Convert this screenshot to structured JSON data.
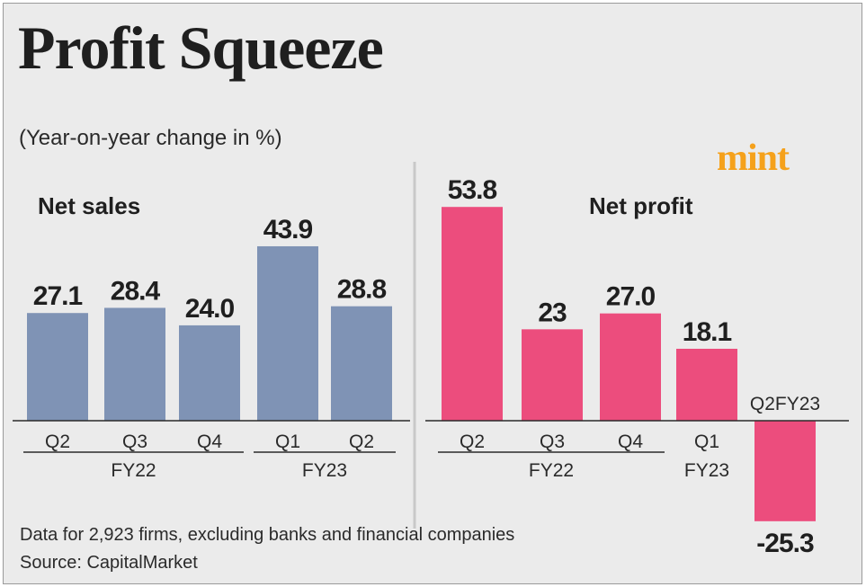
{
  "title": "Profit Squeeze",
  "subtitle": "(Year-on-year change in %)",
  "logo": "mint",
  "footnote": "Data for 2,923 firms, excluding banks and financial companies",
  "source": "Source: CapitalMarket",
  "colors": {
    "background": "#ebebeb",
    "net_sales_bar": "#7f93b5",
    "net_profit_bar": "#ec4d7d",
    "text": "#1f1f1f",
    "logo": "#f5a11b"
  },
  "chart_data": [
    {
      "type": "bar",
      "title": "Net sales",
      "categories": [
        "Q2",
        "Q3",
        "Q4",
        "Q1",
        "Q2"
      ],
      "values": [
        27.1,
        28.4,
        24.0,
        43.9,
        28.8
      ],
      "value_labels": [
        "27.1",
        "28.4",
        "24.0",
        "43.9",
        "28.8"
      ],
      "groups": [
        {
          "label": "FY22",
          "from": 0,
          "to": 2
        },
        {
          "label": "FY23",
          "from": 3,
          "to": 4
        }
      ],
      "ylabel": "Year-on-year change in %"
    },
    {
      "type": "bar",
      "title": "Net profit",
      "categories": [
        "Q2",
        "Q3",
        "Q4",
        "Q1",
        "Q2FY23"
      ],
      "values": [
        53.8,
        23,
        27.0,
        18.1,
        -25.3
      ],
      "value_labels": [
        "53.8",
        "23",
        "27.0",
        "18.1",
        "-25.3"
      ],
      "groups": [
        {
          "label": "FY22",
          "from": 0,
          "to": 2
        },
        {
          "label": "FY23",
          "from": 3,
          "to": 3
        }
      ],
      "ylabel": "Year-on-year change in %"
    }
  ]
}
